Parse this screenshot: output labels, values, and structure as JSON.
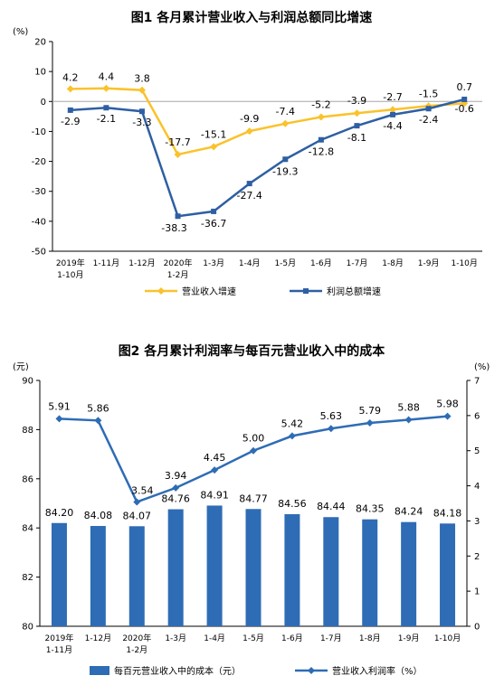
{
  "colors": {
    "revenue_growth": "#FAC22B",
    "profit_growth": "#2E5FA3",
    "cost_bar": "#2E6CB5",
    "margin_line": "#2E6CB5",
    "axis": "#000000",
    "zero_line": "#A6A6A6"
  },
  "chart_data": [
    {
      "type": "line",
      "title": "图1  各月累计营业收入与利润总额同比增速",
      "yunit": "(%)",
      "categories": [
        [
          "2019年",
          "1-10月"
        ],
        [
          "1-11月"
        ],
        [
          "1-12月"
        ],
        [
          "2020年",
          "1-2月"
        ],
        [
          "1-3月"
        ],
        [
          "1-4月"
        ],
        [
          "1-5月"
        ],
        [
          "1-6月"
        ],
        [
          "1-7月"
        ],
        [
          "1-8月"
        ],
        [
          "1-9月"
        ],
        [
          "1-10月"
        ]
      ],
      "ylim": [
        -50,
        20
      ],
      "yticks": [
        "20",
        "10",
        "0",
        "-10",
        "-20",
        "-30",
        "-40",
        "-50"
      ],
      "series": [
        {
          "name": "营业收入增速",
          "values": [
            4.2,
            4.4,
            3.8,
            -17.7,
            -15.1,
            -9.9,
            -7.4,
            -5.2,
            -3.9,
            -2.7,
            -1.5,
            -0.6
          ],
          "labels": [
            "4.2",
            "4.4",
            "3.8",
            "-17.7",
            "-15.1",
            "-9.9",
            "-7.4",
            "-5.2",
            "-3.9",
            "-2.7",
            "-1.5",
            "-0.6"
          ]
        },
        {
          "name": "利润总额增速",
          "values": [
            -2.9,
            -2.1,
            -3.3,
            -38.3,
            -36.7,
            -27.4,
            -19.3,
            -12.8,
            -8.1,
            -4.4,
            -2.4,
            0.7
          ],
          "labels": [
            "-2.9",
            "-2.1",
            "-3.3",
            "-38.3",
            "-36.7",
            "-27.4",
            "-19.3",
            "-12.8",
            "-8.1",
            "-4.4",
            "-2.4",
            "0.7"
          ]
        }
      ],
      "legend_position": "bottom"
    },
    {
      "type": "bar+line",
      "title": "图2  各月累计利润率与每百元营业收入中的成本",
      "yunit_left": "(元)",
      "yunit_right": "(%)",
      "categories": [
        [
          "2019年",
          "1-11月"
        ],
        [
          "1-12月"
        ],
        [
          "2020年",
          "1-2月"
        ],
        [
          "1-3月"
        ],
        [
          "1-4月"
        ],
        [
          "1-5月"
        ],
        [
          "1-6月"
        ],
        [
          "1-7月"
        ],
        [
          "1-8月"
        ],
        [
          "1-9月"
        ],
        [
          "1-10月"
        ]
      ],
      "ylim_left": [
        80,
        90
      ],
      "yticks_left": [
        "90",
        "88",
        "86",
        "84",
        "82",
        "80"
      ],
      "ylim_right": [
        0,
        7
      ],
      "yticks_right": [
        "7",
        "6",
        "5",
        "4",
        "3",
        "2",
        "1",
        "0"
      ],
      "bar_series": {
        "name": "每百元营业收入中的成本（元）",
        "values": [
          84.2,
          84.08,
          84.07,
          84.76,
          84.91,
          84.77,
          84.56,
          84.44,
          84.35,
          84.24,
          84.18
        ],
        "labels": [
          "84.20",
          "84.08",
          "84.07",
          "84.76",
          "84.91",
          "84.77",
          "84.56",
          "84.44",
          "84.35",
          "84.24",
          "84.18"
        ]
      },
      "line_series": {
        "name": "营业收入利润率（%）",
        "values": [
          5.91,
          5.86,
          3.54,
          3.94,
          4.45,
          5.0,
          5.42,
          5.63,
          5.79,
          5.88,
          5.98
        ],
        "labels": [
          "5.91",
          "5.86",
          "3.54",
          "3.94",
          "4.45",
          "5.00",
          "5.42",
          "5.63",
          "5.79",
          "5.88",
          "5.98"
        ]
      },
      "legend_position": "bottom"
    }
  ]
}
